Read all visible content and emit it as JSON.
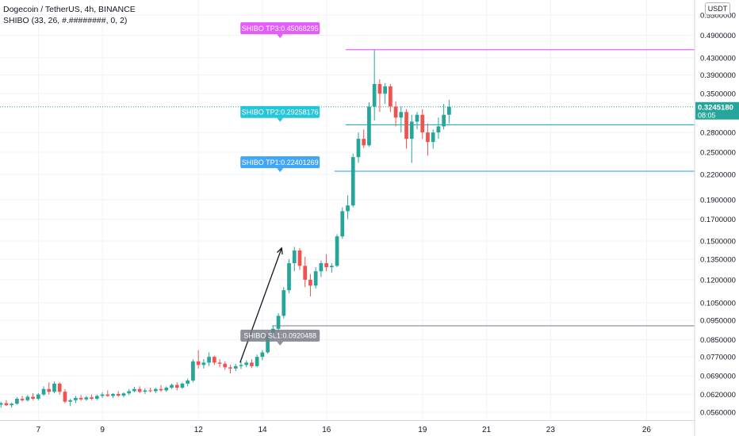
{
  "header": {
    "symbol_line": "Dogecoin / TetherUS, 4h, BINANCE",
    "indicator_line": "SHIBO (33, 26, #.########, 0, 2)",
    "currency_button": "USDT"
  },
  "price_tag": {
    "price": "0.3245180",
    "countdown": "08:05",
    "color": "#26a69a"
  },
  "colors": {
    "up": "#26a69a",
    "down": "#ef5350",
    "tp3": "#e040fb",
    "tp2": "#00bcd4",
    "tp1": "#2196f3",
    "sl": "#787b86",
    "grid": "#f0f3fa"
  },
  "chart_data": {
    "type": "candlestick",
    "y_scale": "log",
    "y_range": [
      0.0535,
      0.6
    ],
    "x_range": [
      5.8,
      27.5
    ],
    "y_ticks": [
      "0.5500000",
      "0.4900000",
      "0.4300000",
      "0.3900000",
      "0.3500000",
      "0.2800000",
      "0.2500000",
      "0.2200000",
      "0.1900000",
      "0.1700000",
      "0.1500000",
      "0.1350000",
      "0.1200000",
      "0.1050000",
      "0.0950000",
      "0.0850000",
      "0.0770000",
      "0.0690000",
      "0.0620000",
      "0.0560000"
    ],
    "x_ticks": [
      {
        "label": "7",
        "x": 7
      },
      {
        "label": "9",
        "x": 9
      },
      {
        "label": "12",
        "x": 12
      },
      {
        "label": "14",
        "x": 14
      },
      {
        "label": "16",
        "x": 16
      },
      {
        "label": "19",
        "x": 19
      },
      {
        "label": "21",
        "x": 21
      },
      {
        "label": "23",
        "x": 23
      },
      {
        "label": "26",
        "x": 26
      }
    ],
    "levels": [
      {
        "name": "SHIBO TP3",
        "label": "SHIBO TP3:0.45068295",
        "value": 0.45068295,
        "color": "#e040fb",
        "start_x": 16.6,
        "label_x": 14.55,
        "label_y": 0.51
      },
      {
        "name": "SHIBO TP2",
        "label": "SHIBO TP2:0.29258176",
        "value": 0.29258176,
        "color": "#00bcd4",
        "start_x": 16.6,
        "label_x": 14.55,
        "label_y": 0.315
      },
      {
        "name": "SHIBO TP1",
        "label": "SHIBO TP1:0.22401269",
        "value": 0.22401269,
        "color": "#2196f3",
        "start_x": 16.25,
        "label_x": 14.55,
        "label_y": 0.236
      },
      {
        "name": "SHIBO SL1",
        "label": "SHIBO SL1:0.0920488",
        "value": 0.0920488,
        "color": "#787b86",
        "start_x": 14.3,
        "label_x": 14.55,
        "label_y": 0.087
      }
    ],
    "last_price": 0.324518,
    "trend_arrow": {
      "from": [
        13.3,
        0.0745
      ],
      "to": [
        14.6,
        0.144
      ]
    },
    "candles": [
      {
        "o": 0.0585,
        "h": 0.0595,
        "l": 0.0575,
        "c": 0.059
      },
      {
        "o": 0.059,
        "h": 0.06,
        "l": 0.058,
        "c": 0.0583
      },
      {
        "o": 0.0583,
        "h": 0.0592,
        "l": 0.0575,
        "c": 0.0588
      },
      {
        "o": 0.0588,
        "h": 0.061,
        "l": 0.0585,
        "c": 0.0605
      },
      {
        "o": 0.0605,
        "h": 0.0615,
        "l": 0.0595,
        "c": 0.06
      },
      {
        "o": 0.06,
        "h": 0.0618,
        "l": 0.0595,
        "c": 0.0612
      },
      {
        "o": 0.0612,
        "h": 0.0625,
        "l": 0.06,
        "c": 0.0605
      },
      {
        "o": 0.0605,
        "h": 0.0625,
        "l": 0.06,
        "c": 0.062
      },
      {
        "o": 0.062,
        "h": 0.065,
        "l": 0.0615,
        "c": 0.064
      },
      {
        "o": 0.064,
        "h": 0.0665,
        "l": 0.062,
        "c": 0.063
      },
      {
        "o": 0.063,
        "h": 0.0668,
        "l": 0.0625,
        "c": 0.066
      },
      {
        "o": 0.066,
        "h": 0.0665,
        "l": 0.062,
        "c": 0.063
      },
      {
        "o": 0.063,
        "h": 0.064,
        "l": 0.059,
        "c": 0.0595
      },
      {
        "o": 0.0595,
        "h": 0.0605,
        "l": 0.058,
        "c": 0.06
      },
      {
        "o": 0.06,
        "h": 0.0615,
        "l": 0.059,
        "c": 0.0608
      },
      {
        "o": 0.0608,
        "h": 0.0618,
        "l": 0.0598,
        "c": 0.0603
      },
      {
        "o": 0.0603,
        "h": 0.0615,
        "l": 0.0598,
        "c": 0.061
      },
      {
        "o": 0.061,
        "h": 0.062,
        "l": 0.06,
        "c": 0.0605
      },
      {
        "o": 0.0605,
        "h": 0.062,
        "l": 0.06,
        "c": 0.0615
      },
      {
        "o": 0.0615,
        "h": 0.0628,
        "l": 0.0608,
        "c": 0.062
      },
      {
        "o": 0.062,
        "h": 0.0635,
        "l": 0.0612,
        "c": 0.0615
      },
      {
        "o": 0.0615,
        "h": 0.0625,
        "l": 0.0608,
        "c": 0.0622
      },
      {
        "o": 0.0622,
        "h": 0.0632,
        "l": 0.0612,
        "c": 0.0616
      },
      {
        "o": 0.0616,
        "h": 0.0628,
        "l": 0.061,
        "c": 0.0624
      },
      {
        "o": 0.0624,
        "h": 0.064,
        "l": 0.0618,
        "c": 0.0632
      },
      {
        "o": 0.0632,
        "h": 0.0648,
        "l": 0.0628,
        "c": 0.064
      },
      {
        "o": 0.064,
        "h": 0.065,
        "l": 0.0625,
        "c": 0.063
      },
      {
        "o": 0.063,
        "h": 0.0642,
        "l": 0.0622,
        "c": 0.0635
      },
      {
        "o": 0.0635,
        "h": 0.0645,
        "l": 0.0628,
        "c": 0.0632
      },
      {
        "o": 0.0632,
        "h": 0.0645,
        "l": 0.0625,
        "c": 0.064
      },
      {
        "o": 0.064,
        "h": 0.0655,
        "l": 0.063,
        "c": 0.0635
      },
      {
        "o": 0.0635,
        "h": 0.065,
        "l": 0.063,
        "c": 0.0645
      },
      {
        "o": 0.0645,
        "h": 0.066,
        "l": 0.064,
        "c": 0.0655
      },
      {
        "o": 0.0655,
        "h": 0.0665,
        "l": 0.0635,
        "c": 0.0645
      },
      {
        "o": 0.0645,
        "h": 0.0665,
        "l": 0.064,
        "c": 0.066
      },
      {
        "o": 0.066,
        "h": 0.068,
        "l": 0.065,
        "c": 0.0672
      },
      {
        "o": 0.0672,
        "h": 0.076,
        "l": 0.0665,
        "c": 0.075
      },
      {
        "o": 0.075,
        "h": 0.08,
        "l": 0.072,
        "c": 0.0735
      },
      {
        "o": 0.0735,
        "h": 0.076,
        "l": 0.072,
        "c": 0.0745
      },
      {
        "o": 0.0745,
        "h": 0.079,
        "l": 0.073,
        "c": 0.077
      },
      {
        "o": 0.077,
        "h": 0.0775,
        "l": 0.0735,
        "c": 0.0745
      },
      {
        "o": 0.0745,
        "h": 0.076,
        "l": 0.0725,
        "c": 0.074
      },
      {
        "o": 0.074,
        "h": 0.075,
        "l": 0.0715,
        "c": 0.0725
      },
      {
        "o": 0.0725,
        "h": 0.0735,
        "l": 0.07,
        "c": 0.072
      },
      {
        "o": 0.072,
        "h": 0.074,
        "l": 0.071,
        "c": 0.073
      },
      {
        "o": 0.073,
        "h": 0.075,
        "l": 0.0718,
        "c": 0.0735
      },
      {
        "o": 0.0735,
        "h": 0.0755,
        "l": 0.0725,
        "c": 0.0745
      },
      {
        "o": 0.0745,
        "h": 0.076,
        "l": 0.0722,
        "c": 0.073
      },
      {
        "o": 0.073,
        "h": 0.078,
        "l": 0.0725,
        "c": 0.077
      },
      {
        "o": 0.077,
        "h": 0.08,
        "l": 0.0755,
        "c": 0.079
      },
      {
        "o": 0.079,
        "h": 0.088,
        "l": 0.0785,
        "c": 0.087
      },
      {
        "o": 0.087,
        "h": 0.092,
        "l": 0.085,
        "c": 0.0905
      },
      {
        "o": 0.0905,
        "h": 0.099,
        "l": 0.089,
        "c": 0.0975
      },
      {
        "o": 0.0975,
        "h": 0.115,
        "l": 0.096,
        "c": 0.113
      },
      {
        "o": 0.113,
        "h": 0.135,
        "l": 0.111,
        "c": 0.132
      },
      {
        "o": 0.132,
        "h": 0.145,
        "l": 0.126,
        "c": 0.142
      },
      {
        "o": 0.142,
        "h": 0.144,
        "l": 0.127,
        "c": 0.13
      },
      {
        "o": 0.13,
        "h": 0.137,
        "l": 0.115,
        "c": 0.12
      },
      {
        "o": 0.12,
        "h": 0.124,
        "l": 0.109,
        "c": 0.116
      },
      {
        "o": 0.116,
        "h": 0.129,
        "l": 0.114,
        "c": 0.126
      },
      {
        "o": 0.126,
        "h": 0.134,
        "l": 0.122,
        "c": 0.132
      },
      {
        "o": 0.132,
        "h": 0.139,
        "l": 0.126,
        "c": 0.129
      },
      {
        "o": 0.129,
        "h": 0.132,
        "l": 0.125,
        "c": 0.13
      },
      {
        "o": 0.13,
        "h": 0.156,
        "l": 0.129,
        "c": 0.154
      },
      {
        "o": 0.154,
        "h": 0.182,
        "l": 0.152,
        "c": 0.178
      },
      {
        "o": 0.178,
        "h": 0.195,
        "l": 0.17,
        "c": 0.184
      },
      {
        "o": 0.184,
        "h": 0.248,
        "l": 0.182,
        "c": 0.243
      },
      {
        "o": 0.243,
        "h": 0.28,
        "l": 0.235,
        "c": 0.27
      },
      {
        "o": 0.27,
        "h": 0.285,
        "l": 0.256,
        "c": 0.26
      },
      {
        "o": 0.26,
        "h": 0.333,
        "l": 0.258,
        "c": 0.325
      },
      {
        "o": 0.325,
        "h": 0.45,
        "l": 0.3,
        "c": 0.37
      },
      {
        "o": 0.37,
        "h": 0.38,
        "l": 0.315,
        "c": 0.35
      },
      {
        "o": 0.35,
        "h": 0.372,
        "l": 0.33,
        "c": 0.365
      },
      {
        "o": 0.365,
        "h": 0.37,
        "l": 0.315,
        "c": 0.325
      },
      {
        "o": 0.325,
        "h": 0.335,
        "l": 0.29,
        "c": 0.305
      },
      {
        "o": 0.305,
        "h": 0.325,
        "l": 0.28,
        "c": 0.315
      },
      {
        "o": 0.315,
        "h": 0.32,
        "l": 0.255,
        "c": 0.27
      },
      {
        "o": 0.27,
        "h": 0.31,
        "l": 0.235,
        "c": 0.298
      },
      {
        "o": 0.298,
        "h": 0.315,
        "l": 0.285,
        "c": 0.31
      },
      {
        "o": 0.31,
        "h": 0.32,
        "l": 0.27,
        "c": 0.28
      },
      {
        "o": 0.28,
        "h": 0.295,
        "l": 0.245,
        "c": 0.265
      },
      {
        "o": 0.265,
        "h": 0.285,
        "l": 0.255,
        "c": 0.28
      },
      {
        "o": 0.28,
        "h": 0.305,
        "l": 0.27,
        "c": 0.29
      },
      {
        "o": 0.29,
        "h": 0.33,
        "l": 0.285,
        "c": 0.31
      },
      {
        "o": 0.31,
        "h": 0.338,
        "l": 0.295,
        "c": 0.3245
      }
    ]
  }
}
